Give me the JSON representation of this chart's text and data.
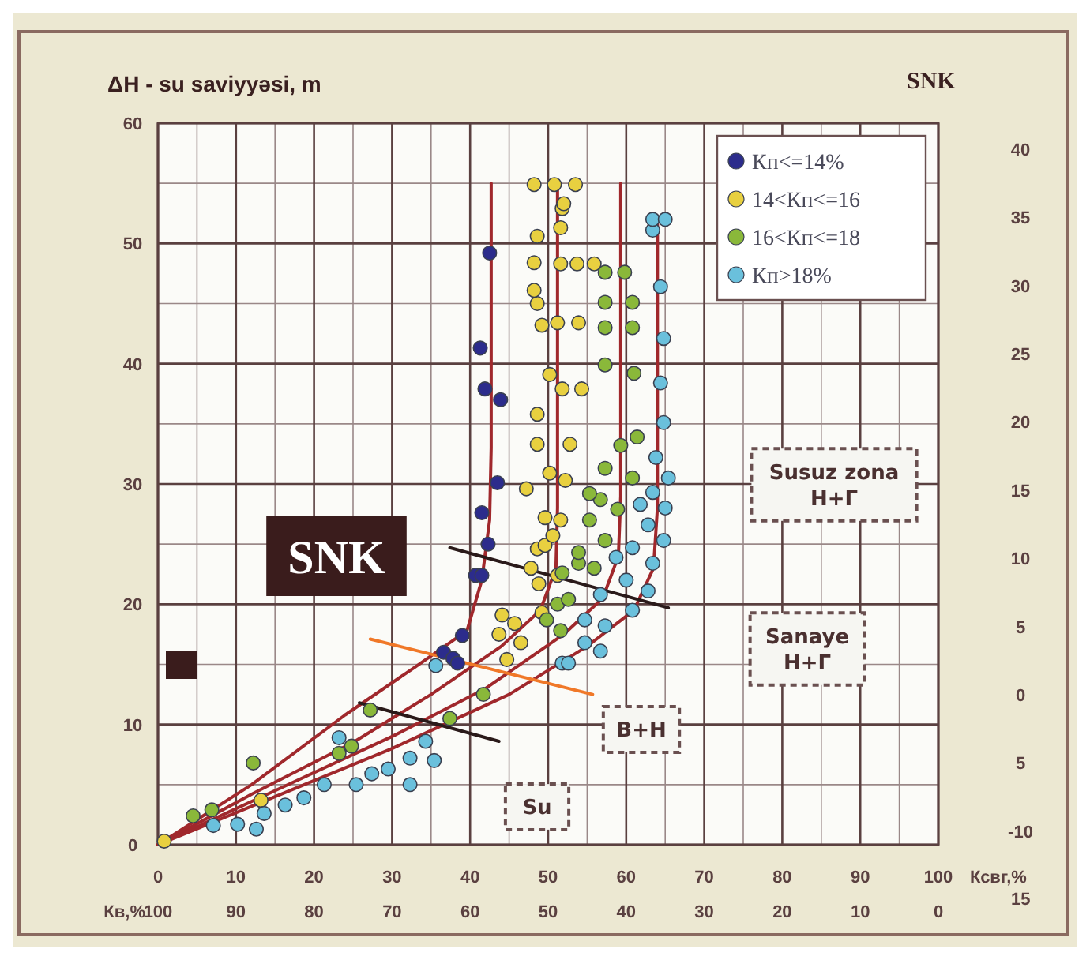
{
  "chart_data": {
    "type": "scatter",
    "title": "SNK",
    "ylabel": "ΔH - su saviyyəsi, m",
    "xlabel": "Ксвг,%",
    "x2label": "Кв,%",
    "xlim": [
      0,
      100
    ],
    "xticks": [
      0,
      10,
      20,
      30,
      40,
      50,
      60,
      70,
      80,
      90,
      100
    ],
    "x2lim": [
      100,
      0
    ],
    "x2ticks": [
      100,
      90,
      80,
      70,
      60,
      50,
      40,
      30,
      20,
      10,
      0
    ],
    "ylim": [
      0,
      60
    ],
    "yticks": [
      0,
      10,
      20,
      30,
      40,
      50,
      60
    ],
    "y2lim": [
      -11,
      41.9
    ],
    "y2ticks": [
      40,
      35,
      30,
      25,
      20,
      15,
      10,
      5,
      0,
      {
        "value": -5,
        "label": "5"
      },
      -10
    ],
    "grid": true,
    "legend": "top right",
    "marker": "circle",
    "annotations": [
      "SNK",
      "Susuz zona\nН+Г",
      "Sanaye\nН+Г",
      "В+Н",
      "Su",
      "15"
    ],
    "series": [
      {
        "type": "line",
        "marker": "none",
        "color": "#a0282c",
        "line_style": "solid",
        "x": [
          0,
          12,
          24,
          33,
          39.6,
          41.5,
          42.5,
          42.7,
          42.7
        ],
        "values": [
          0,
          5,
          10.8,
          14.8,
          17.8,
          22,
          27,
          33,
          55
        ]
      },
      {
        "type": "line",
        "marker": "none",
        "color": "#a0282c",
        "line_style": "solid",
        "x": [
          0,
          12,
          25,
          35,
          44,
          49,
          51,
          51.2,
          51.2
        ],
        "values": [
          0,
          4.2,
          8.5,
          12.5,
          16.5,
          19.5,
          23,
          28,
          55
        ]
      },
      {
        "type": "line",
        "marker": "none",
        "color": "#a0282c",
        "line_style": "solid",
        "x": [
          0,
          15,
          30,
          42,
          52,
          57,
          59,
          59.3,
          59.3
        ],
        "values": [
          0,
          4.5,
          9,
          13,
          17.5,
          20.5,
          24,
          29,
          55
        ]
      },
      {
        "type": "line",
        "marker": "none",
        "color": "#a0282c",
        "line_style": "solid",
        "x": [
          0,
          15,
          30,
          45,
          55,
          61,
          63.5,
          64,
          64
        ],
        "values": [
          0,
          4,
          8,
          12.5,
          16.5,
          19.5,
          23,
          28,
          52
        ]
      },
      {
        "type": "line",
        "marker": "none",
        "color": "#2a1a1a",
        "line_style": "solid",
        "x": [
          37.4,
          65.4
        ],
        "values": [
          24.7,
          19.7
        ]
      },
      {
        "type": "line",
        "marker": "none",
        "color": "#f07828",
        "line_style": "solid",
        "x": [
          27.2,
          55.7
        ],
        "values": [
          17.1,
          12.5
        ]
      },
      {
        "type": "line",
        "marker": "none",
        "color": "#2a1a1a",
        "line_style": "solid",
        "x": [
          25.8,
          43.7
        ],
        "values": [
          11.8,
          8.6
        ]
      },
      {
        "name": "Кп<=14%",
        "color": "#2c2c8c",
        "x": [
          36.6,
          37.8,
          38.4,
          39.0,
          40.7,
          41.5,
          42.3,
          41.5,
          43.5,
          41.9,
          43.9,
          41.3,
          42.5
        ],
        "values": [
          16.0,
          15.5,
          15.1,
          17.4,
          22.4,
          22.4,
          25.0,
          27.6,
          30.1,
          37.9,
          37.0,
          41.3,
          49.2
        ]
      },
      {
        "name": "14<Кп<=16",
        "color": "#e8d040",
        "x": [
          0.8,
          13.2,
          44.7,
          46.5,
          43.7,
          45.7,
          44.1,
          49.2,
          51.2,
          48.8,
          47.8,
          48.6,
          49.6,
          50.6,
          51.6,
          49.6,
          47.2,
          52.2,
          50.2,
          52.8,
          48.6,
          48.6,
          54.3,
          51.8,
          50.2,
          53.9,
          51.2,
          49.2,
          48.6,
          48.2,
          55.9,
          53.7,
          51.6,
          48.2,
          48.6,
          51.6,
          51.8,
          48.2,
          50.8,
          53.5,
          52.0
        ],
        "values": [
          0.3,
          3.7,
          15.4,
          16.8,
          17.5,
          18.4,
          19.1,
          19.3,
          22.4,
          21.7,
          23.0,
          24.6,
          24.9,
          25.7,
          27.0,
          27.2,
          29.6,
          30.3,
          30.9,
          33.3,
          33.3,
          35.8,
          37.9,
          37.9,
          39.1,
          43.4,
          43.4,
          43.2,
          45.0,
          46.1,
          48.3,
          48.3,
          48.3,
          48.4,
          50.6,
          51.3,
          52.9,
          54.9,
          54.9,
          54.9,
          53.3
        ]
      },
      {
        "name": "16<Кп<=18",
        "color": "#8ab83a",
        "x": [
          4.5,
          6.9,
          12.2,
          23.2,
          24.8,
          27.2,
          37.4,
          41.7,
          51.6,
          51.2,
          52.6,
          49.8,
          53.9,
          51.8,
          55.9,
          53.9,
          57.3,
          55.3,
          58.9,
          56.7,
          55.3,
          60.8,
          57.3,
          59.3,
          61.4,
          61.0,
          57.3,
          60.8,
          57.3,
          60.8,
          57.3,
          59.8,
          57.3
        ],
        "values": [
          2.4,
          2.9,
          6.8,
          7.6,
          8.2,
          11.2,
          10.5,
          12.5,
          17.8,
          20.0,
          20.4,
          18.7,
          23.4,
          22.6,
          23.0,
          24.3,
          25.3,
          27.0,
          27.9,
          28.7,
          29.2,
          30.5,
          31.3,
          33.2,
          33.9,
          39.2,
          39.9,
          43.0,
          43.0,
          45.1,
          45.1,
          47.6,
          47.6
        ]
      },
      {
        "name": "Кп>18%",
        "color": "#6ac0dc",
        "x": [
          7.1,
          10.2,
          12.6,
          13.6,
          16.3,
          18.7,
          21.3,
          23.2,
          25.4,
          27.4,
          29.5,
          32.3,
          32.3,
          35.4,
          34.3,
          35.6,
          51.8,
          52.6,
          56.7,
          54.7,
          57.3,
          54.7,
          60.8,
          56.7,
          62.8,
          60.0,
          58.7,
          63.4,
          60.8,
          64.8,
          62.8,
          61.8,
          65.0,
          63.4,
          65.4,
          63.8,
          64.8,
          64.4,
          64.8,
          64.4,
          63.4,
          63.4,
          65.0
        ],
        "values": [
          1.6,
          1.7,
          1.3,
          2.6,
          3.3,
          3.9,
          5.0,
          8.9,
          5.0,
          5.9,
          6.3,
          5.0,
          7.2,
          7.0,
          8.6,
          14.9,
          15.1,
          15.1,
          16.1,
          16.8,
          18.2,
          18.7,
          19.5,
          20.8,
          21.1,
          22.0,
          23.9,
          23.4,
          24.7,
          25.3,
          26.6,
          28.3,
          28.0,
          29.3,
          30.5,
          32.2,
          35.1,
          38.4,
          42.1,
          46.4,
          51.1,
          52.0,
          52.0
        ]
      }
    ]
  }
}
